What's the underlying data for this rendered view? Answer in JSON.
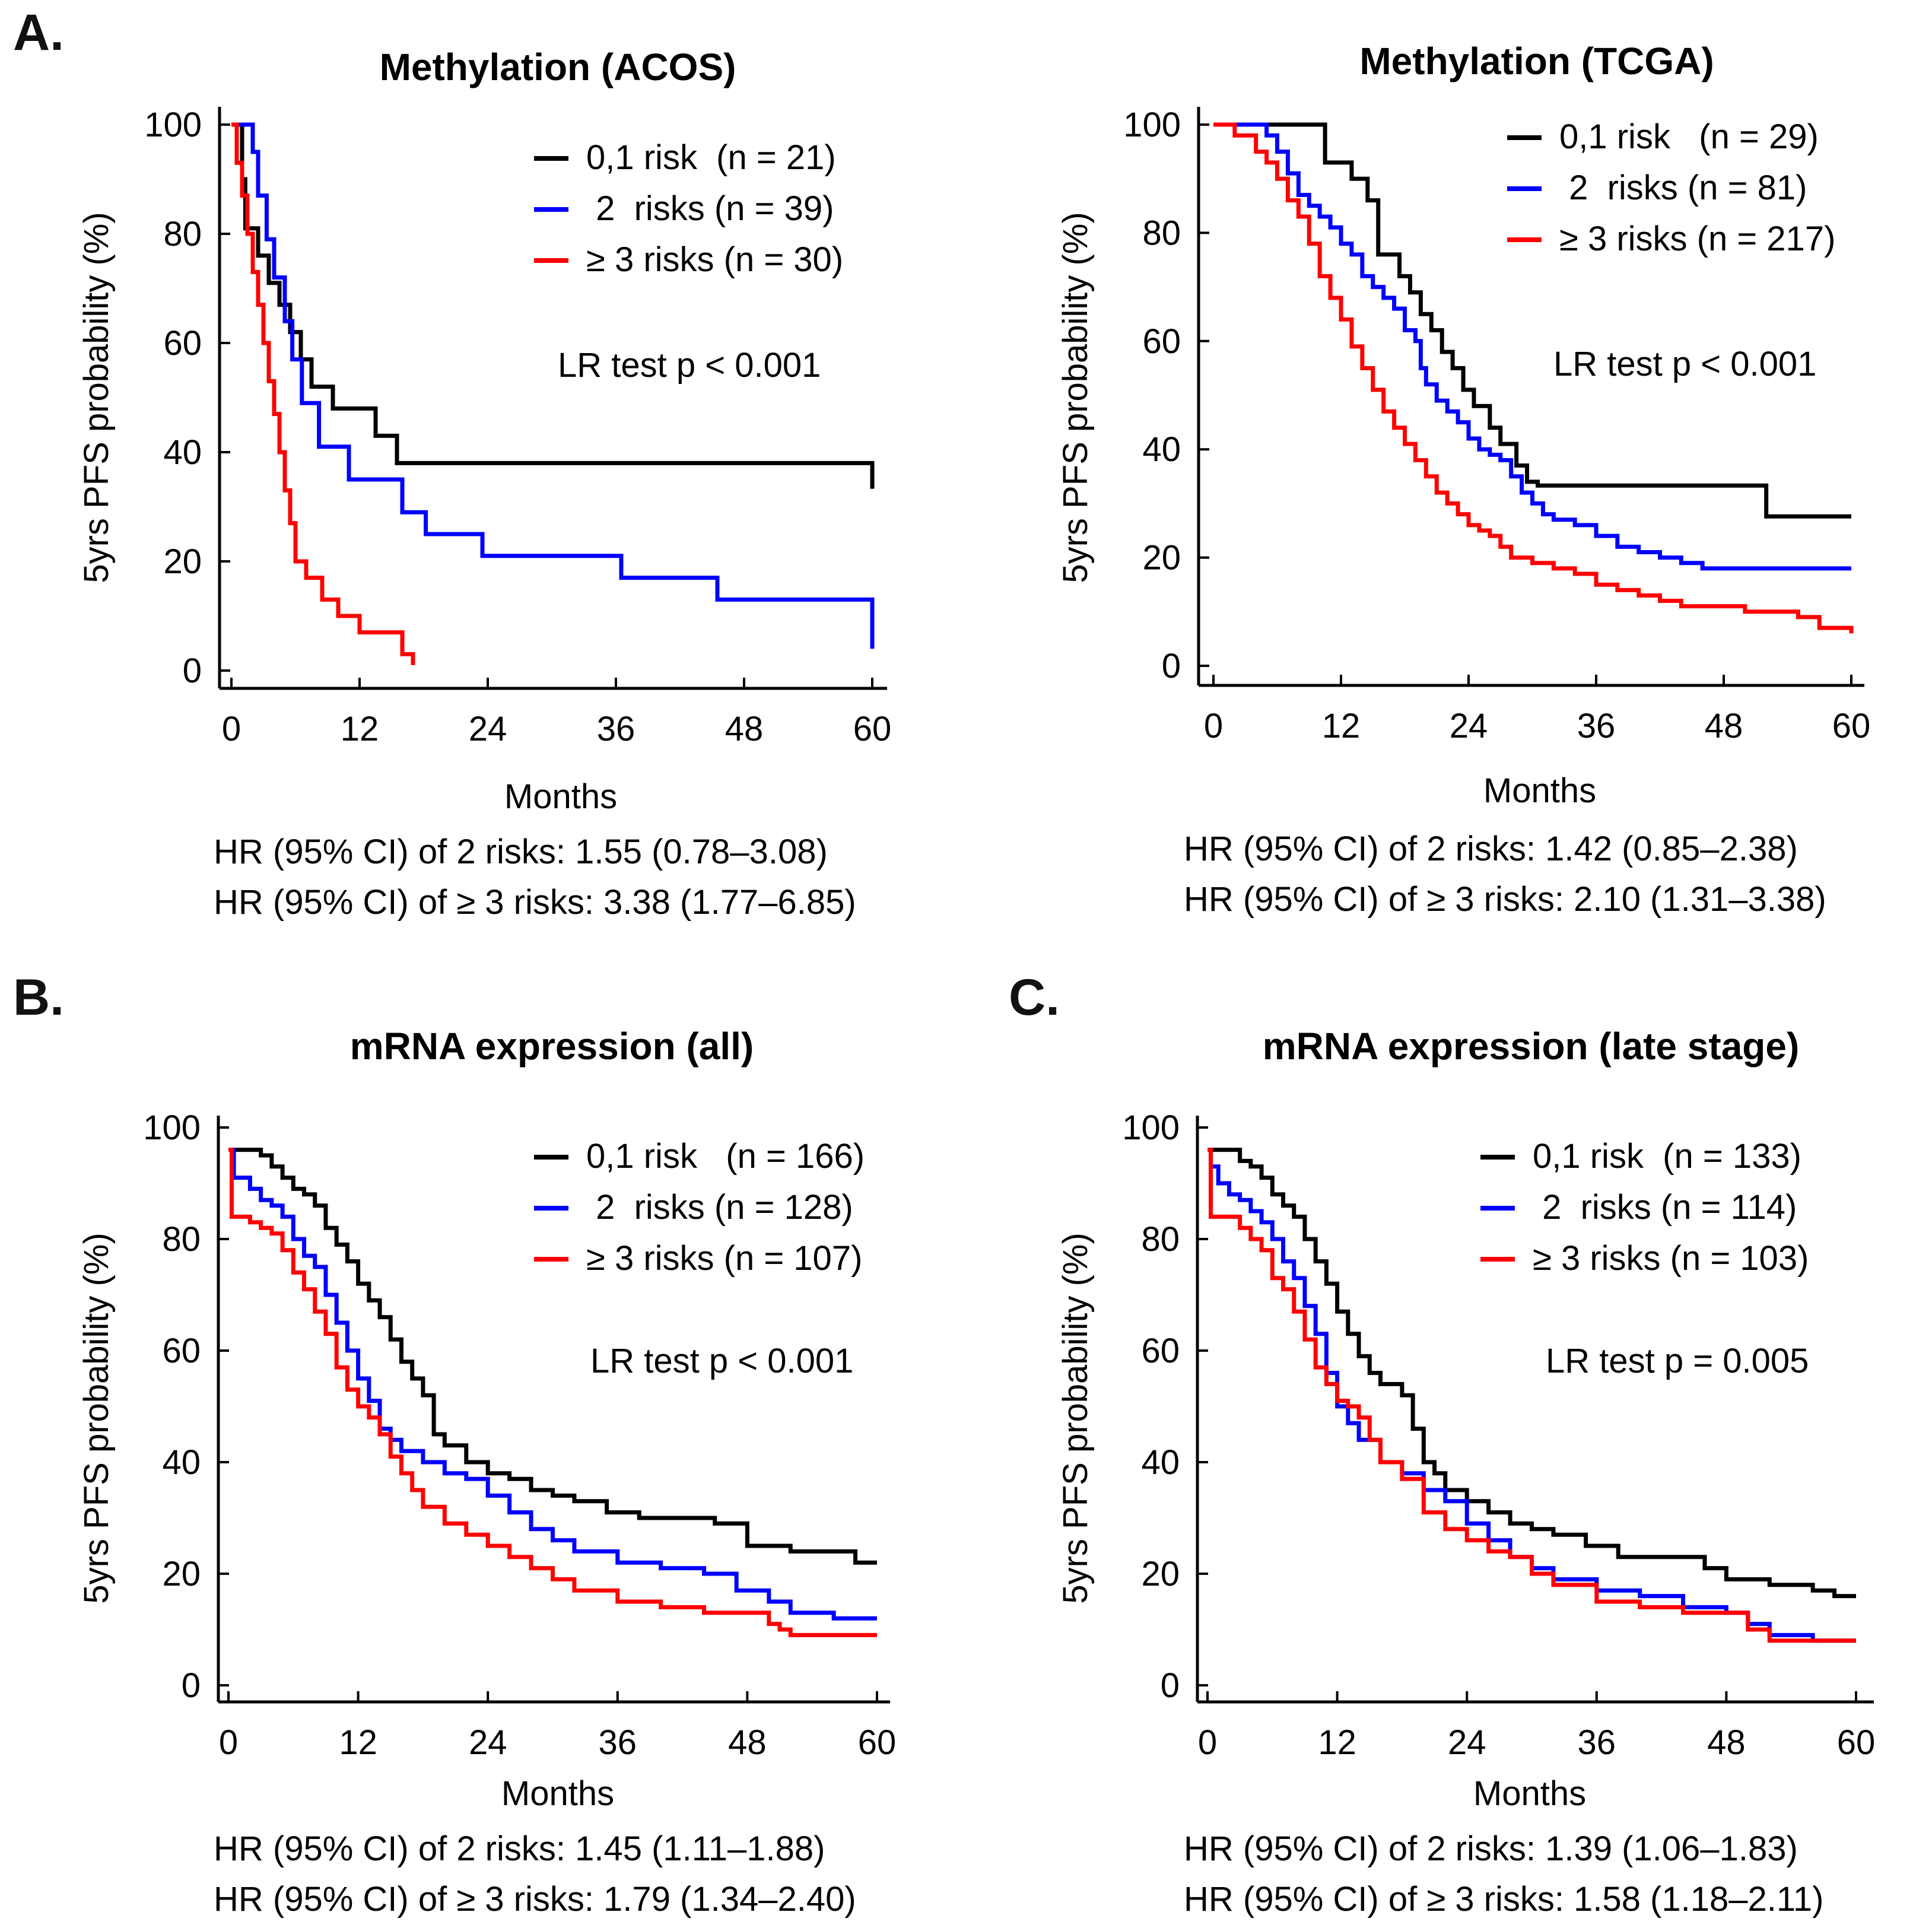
{
  "colors": {
    "low": "#000000",
    "mid": "#0000ff",
    "high": "#ff0000",
    "axis": "#000000"
  },
  "panel_letters": {
    "a": "A.",
    "b": "B.",
    "c": "C."
  },
  "chart_data": [
    {
      "id": "acos",
      "type": "line",
      "title": "Methylation (ACOS)",
      "xlabel": "Months",
      "ylabel": "5yrs PFS probability (%)",
      "xlim": [
        0,
        60
      ],
      "ylim": [
        0,
        100
      ],
      "xticks": [
        "0",
        "12",
        "24",
        "36",
        "48",
        "60"
      ],
      "yticks": [
        "0",
        "20",
        "40",
        "60",
        "80",
        "100"
      ],
      "legend": [
        {
          "label": "0,1 risk  (n = 21)",
          "color": "low"
        },
        {
          "label": " 2  risks (n = 39)",
          "color": "mid"
        },
        {
          "label": "≥ 3 risks (n = 30)",
          "color": "high"
        }
      ],
      "test": "LR test p < 0.001",
      "hr": [
        "HR (95% CI) of   2  risks: 1.55 (0.78–3.08)",
        "HR (95% CI) of ≥ 3 risks: 3.38 (1.77–6.85)"
      ],
      "series": [
        {
          "name": "0,1 risk",
          "color": "low",
          "x": [
            0,
            1,
            1.3,
            2.5,
            3.5,
            4.5,
            5.5,
            6.5,
            7.5,
            9.5,
            13.5,
            15.5,
            60
          ],
          "y": [
            100,
            90,
            81,
            76,
            71,
            67,
            62,
            57,
            52,
            48,
            43,
            38,
            33.3
          ]
        },
        {
          "name": "2 risks",
          "color": "mid",
          "x": [
            0,
            1.5,
            2,
            2.5,
            3.3,
            4,
            5,
            5.7,
            6.6,
            8.2,
            11,
            16,
            18.2,
            23.5,
            36.5,
            45.5,
            60
          ],
          "y": [
            100,
            100,
            95,
            87,
            79,
            72,
            64,
            57,
            49,
            41,
            35,
            29,
            25,
            21,
            17,
            13,
            4
          ]
        },
        {
          "name": "≥ 3 risks",
          "color": "high",
          "x": [
            0,
            0.5,
            1,
            1.5,
            2,
            2.5,
            3,
            3.5,
            4,
            4.5,
            5,
            5.5,
            6,
            7,
            8.5,
            10,
            12,
            16,
            17
          ],
          "y": [
            100,
            93,
            87,
            80,
            73,
            67,
            60,
            53,
            47,
            40,
            33,
            27,
            20,
            17,
            13,
            10,
            7,
            3,
            1
          ]
        }
      ]
    },
    {
      "id": "tcga",
      "type": "line",
      "title": "Methylation (TCGA)",
      "xlabel": "Months",
      "ylabel": "5yrs PFS probability (%)",
      "xlim": [
        0,
        60
      ],
      "ylim": [
        0,
        100
      ],
      "xticks": [
        "0",
        "12",
        "24",
        "36",
        "48",
        "60"
      ],
      "yticks": [
        "0",
        "20",
        "40",
        "60",
        "80",
        "100"
      ],
      "legend": [
        {
          "label": "0,1 risk   (n = 29)",
          "color": "low"
        },
        {
          "label": " 2  risks (n = 81)",
          "color": "mid"
        },
        {
          "label": "≥ 3 risks (n = 217)",
          "color": "high"
        }
      ],
      "test": "LR test p < 0.001",
      "hr": [
        "HR (95% CI) of   2  risks: 1.42 (0.85–2.38)",
        "HR (95% CI) of ≥ 3 risks: 2.10 (1.31–3.38)"
      ],
      "series": [
        {
          "name": "0,1 risk",
          "color": "low",
          "x": [
            0,
            9.5,
            10.5,
            13,
            14.5,
            15.5,
            17.5,
            18.5,
            19.5,
            20.5,
            21.5,
            22.5,
            23.5,
            24.5,
            26,
            27,
            28.5,
            29.5,
            30.5,
            52,
            60
          ],
          "y": [
            100,
            100,
            93,
            90,
            86,
            76,
            72,
            69,
            65,
            62,
            58,
            55,
            51,
            48,
            44,
            41,
            37,
            34,
            33.3,
            27.6,
            27.6
          ]
        },
        {
          "name": "2 risks",
          "color": "mid",
          "x": [
            0,
            5,
            6,
            7,
            8,
            9,
            10,
            11,
            12,
            13,
            14,
            15,
            16,
            17,
            18,
            19,
            19.5,
            20,
            21,
            22,
            23,
            24,
            25,
            26,
            27,
            28,
            29,
            30,
            31,
            32,
            34,
            36,
            38,
            40,
            42,
            44,
            46,
            60
          ],
          "y": [
            100,
            98,
            95,
            91,
            87,
            85,
            83,
            81,
            78,
            76,
            72,
            70,
            68,
            66,
            62,
            60,
            55,
            52,
            49,
            47,
            45,
            42,
            40,
            39,
            38,
            35,
            32,
            30,
            28,
            27,
            26,
            24,
            22,
            21,
            20,
            19,
            18,
            18
          ]
        },
        {
          "name": "≥ 3 risks",
          "color": "high",
          "x": [
            0,
            2,
            4,
            5,
            6,
            7,
            8,
            9,
            10,
            11,
            12,
            13,
            14,
            15,
            16,
            17,
            18,
            19,
            20,
            21,
            22,
            23,
            24,
            25,
            26,
            27,
            28,
            30,
            32,
            34,
            36,
            38,
            40,
            42,
            44,
            46,
            50,
            54,
            55,
            57,
            60
          ],
          "y": [
            100,
            98,
            95,
            93,
            90,
            86,
            83,
            78,
            72,
            68,
            64,
            59,
            55,
            51,
            47,
            44,
            41,
            38,
            35,
            32,
            30,
            28,
            26,
            25,
            24,
            22,
            20,
            19,
            18,
            17,
            15,
            14,
            13,
            12,
            11,
            11,
            10,
            10,
            9,
            7,
            6
          ]
        }
      ]
    },
    {
      "id": "mrna_all",
      "type": "line",
      "title": "mRNA expression (all)",
      "xlabel": "Months",
      "ylabel": "5yrs PFS probability (%)",
      "xlim": [
        0,
        60
      ],
      "ylim": [
        0,
        100
      ],
      "xticks": [
        "0",
        "12",
        "24",
        "36",
        "48",
        "60"
      ],
      "yticks": [
        "0",
        "20",
        "40",
        "60",
        "80",
        "100"
      ],
      "legend": [
        {
          "label": "0,1 risk   (n = 166)",
          "color": "low"
        },
        {
          "label": " 2  risks (n = 128)",
          "color": "mid"
        },
        {
          "label": "≥ 3 risks (n = 107)",
          "color": "high"
        }
      ],
      "test": "LR test p < 0.001",
      "hr": [
        "HR (95% CI) of   2  risks: 1.45 (1.11–1.88)",
        "HR (95% CI) of ≥ 3 risks: 1.79 (1.34–2.40)"
      ],
      "series": [
        {
          "name": "0,1 risk",
          "color": "low",
          "x": [
            0,
            0.5,
            3,
            4,
            5,
            6,
            7,
            8,
            9,
            10,
            11,
            12,
            13,
            14,
            15,
            16,
            17,
            18,
            19,
            20,
            22,
            24,
            26,
            28,
            30,
            32,
            35,
            38,
            42,
            45,
            48,
            52,
            55,
            58,
            60
          ],
          "y": [
            96,
            96,
            95,
            93,
            91,
            89,
            88,
            86,
            82,
            79,
            76,
            72,
            69,
            66,
            62,
            58,
            55,
            52,
            45,
            43,
            40,
            38,
            37,
            35,
            34,
            33,
            31,
            30,
            30,
            29,
            25,
            24,
            24,
            22,
            22
          ]
        },
        {
          "name": "2 risks",
          "color": "mid",
          "x": [
            0,
            0.5,
            2,
            3,
            4,
            5,
            6,
            7,
            8,
            9,
            10,
            11,
            12,
            13,
            14,
            15,
            16,
            18,
            20,
            22,
            24,
            26,
            28,
            30,
            32,
            36,
            40,
            44,
            47,
            50,
            52,
            56,
            60
          ],
          "y": [
            96,
            91,
            89,
            87,
            86,
            84,
            80,
            77,
            75,
            70,
            65,
            60,
            55,
            51,
            46,
            44,
            42,
            40,
            38,
            37,
            34,
            31,
            28,
            26,
            24,
            22,
            21,
            20,
            17,
            15,
            13,
            12,
            12
          ]
        },
        {
          "name": "≥ 3 risks",
          "color": "high",
          "x": [
            0,
            0.3,
            2,
            3,
            4,
            5,
            6,
            7,
            8,
            9,
            10,
            11,
            12,
            13,
            14,
            15,
            16,
            17,
            18,
            20,
            22,
            24,
            26,
            28,
            30,
            32,
            36,
            40,
            44,
            47,
            50,
            51,
            52,
            54,
            60
          ],
          "y": [
            96,
            84,
            83,
            82,
            81,
            78,
            74,
            71,
            67,
            63,
            57,
            53,
            50,
            48,
            45,
            41,
            38,
            35,
            32,
            29,
            27,
            25,
            23,
            21,
            19,
            17,
            15,
            14,
            13,
            13,
            11,
            10,
            9,
            9,
            9
          ]
        }
      ]
    },
    {
      "id": "mrna_late",
      "type": "line",
      "title": "mRNA expression (late stage)",
      "xlabel": "Months",
      "ylabel": "5yrs PFS probability (%)",
      "xlim": [
        0,
        60
      ],
      "ylim": [
        0,
        100
      ],
      "xticks": [
        "0",
        "12",
        "24",
        "36",
        "48",
        "60"
      ],
      "yticks": [
        "0",
        "20",
        "40",
        "60",
        "80",
        "100"
      ],
      "legend": [
        {
          "label": "0,1 risk  (n = 133)",
          "color": "low"
        },
        {
          "label": " 2  risks (n = 114)",
          "color": "mid"
        },
        {
          "label": "≥ 3 risks (n = 103)",
          "color": "high"
        }
      ],
      "test": "LR test p = 0.005",
      "hr": [
        "HR (95% CI) of   2  risks: 1.39 (1.06–1.83)",
        "HR (95% CI) of ≥ 3 risks: 1.58 (1.18–2.11)"
      ],
      "series": [
        {
          "name": "0,1 risk",
          "color": "low",
          "x": [
            0,
            2,
            3,
            4,
            5,
            6,
            7,
            8,
            9,
            10,
            11,
            12,
            13,
            14,
            15,
            16,
            18,
            19,
            20,
            21,
            22,
            24,
            26,
            28,
            30,
            32,
            35,
            38,
            42,
            46,
            48,
            52,
            56,
            58,
            60
          ],
          "y": [
            96,
            96,
            94,
            93,
            91,
            88,
            86,
            84,
            80,
            76,
            72,
            67,
            63,
            59,
            56,
            54,
            52,
            46,
            40,
            38,
            35,
            33,
            31,
            29,
            28,
            27,
            25,
            23,
            23,
            21,
            19,
            18,
            17,
            16,
            16
          ]
        },
        {
          "name": "2 risks",
          "color": "mid",
          "x": [
            0,
            0.3,
            1,
            2,
            3,
            4,
            5,
            6,
            7,
            8,
            9,
            10,
            11,
            12,
            13,
            14,
            16,
            18,
            20,
            22,
            24,
            26,
            28,
            30,
            32,
            36,
            40,
            44,
            48,
            50,
            52,
            56,
            60
          ],
          "y": [
            96,
            93,
            90,
            88,
            87,
            85,
            83,
            80,
            76,
            73,
            68,
            63,
            56,
            50,
            47,
            44,
            40,
            38,
            35,
            33,
            29,
            26,
            23,
            21,
            19,
            17,
            16,
            14,
            13,
            11,
            9,
            8,
            8
          ]
        },
        {
          "name": "≥ 3 risks",
          "color": "high",
          "x": [
            0,
            0.3,
            2,
            3,
            4,
            5,
            6,
            7,
            8,
            9,
            10,
            11,
            12,
            13,
            14,
            15,
            16,
            17,
            18,
            20,
            22,
            24,
            26,
            28,
            30,
            32,
            36,
            40,
            44,
            48,
            50,
            52,
            56,
            60
          ],
          "y": [
            96,
            84,
            84,
            82,
            80,
            78,
            73,
            71,
            67,
            62,
            57,
            54,
            51,
            50,
            48,
            44,
            40,
            40,
            37,
            31,
            28,
            26,
            24,
            23,
            20,
            18,
            15,
            14,
            13,
            13,
            10,
            8,
            8,
            8
          ]
        }
      ]
    }
  ]
}
